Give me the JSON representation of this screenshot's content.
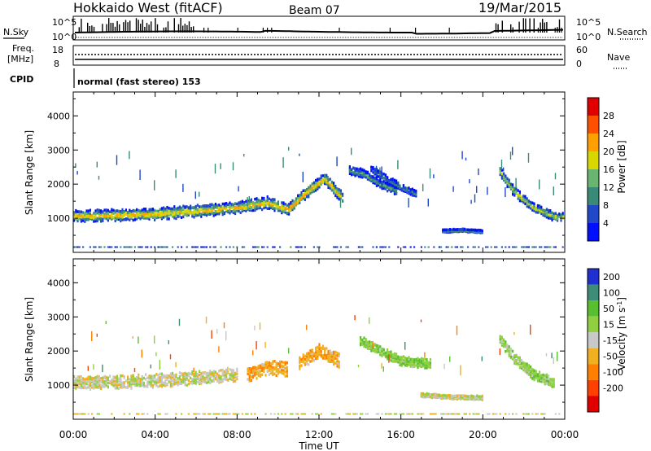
{
  "header": {
    "station": "Hokkaido West (fitACF)",
    "beam": "Beam 07",
    "date": "19/Mar/2015"
  },
  "summary": {
    "nsky_label": "N.Sky",
    "nsearch_label": "N.Search",
    "noise_ticks": [
      "10^5",
      "10^0"
    ],
    "freq_label_1": "Freq.",
    "freq_label_2": "[MHz]",
    "freq_ticks": [
      "18",
      "8"
    ],
    "nave_label": "Nave",
    "nave_ticks": [
      "60",
      "0"
    ],
    "cpid_label": "CPID",
    "cpid_text": "normal (fast stereo) 153"
  },
  "axes": {
    "ylabel": "Slant Range [km]",
    "yticks": [
      "1000",
      "2000",
      "3000",
      "4000"
    ],
    "xlabel": "Time UT",
    "xticks": [
      "00:00",
      "04:00",
      "08:00",
      "12:00",
      "16:00",
      "20:00",
      "00:00"
    ]
  },
  "power_scale": {
    "label": "Power [dB]",
    "ticks": [
      "4",
      "8",
      "12",
      "16",
      "20",
      "24",
      "28"
    ],
    "colors": [
      "#0010ff",
      "#2048c8",
      "#3a8a78",
      "#68b470",
      "#d8d800",
      "#ffa000",
      "#ff5000",
      "#e00000"
    ]
  },
  "velocity_scale": {
    "label_main": "Velocity [m s",
    "label_sup": "-1",
    "label_end": "]",
    "ticks": [
      "200",
      "100",
      "50",
      "15",
      "-15",
      "-50",
      "-100",
      "-200"
    ],
    "colors": [
      "#2030d0",
      "#3c8c78",
      "#58c030",
      "#90d040",
      "#c8c8c8",
      "#f0b020",
      "#ff8000",
      "#ff4000",
      "#e00000"
    ]
  },
  "chart_data": [
    {
      "type": "heatmap",
      "panel": "power",
      "x_unit": "hours UT",
      "xlim": [
        0,
        24
      ],
      "ylim": [
        0,
        4700
      ],
      "clim": [
        0,
        30
      ],
      "backscatter_bands": [
        {
          "t": [
            0,
            2,
            4,
            6,
            8,
            9.5,
            10.5,
            11.5,
            12.3,
            13.2
          ],
          "range_km": [
            1050,
            1080,
            1120,
            1200,
            1300,
            1450,
            1250,
            1800,
            2150,
            1550
          ],
          "width_km": 250,
          "peak_power_db": 22
        },
        {
          "t": [
            13.5,
            14.2,
            15,
            15.8
          ],
          "range_km": [
            2400,
            2300,
            2000,
            1800
          ],
          "width_km": 180,
          "peak_power_db": 12
        },
        {
          "t": [
            14.5,
            15.2,
            16,
            16.8
          ],
          "range_km": [
            2450,
            2200,
            1900,
            1700
          ],
          "width_km": 150,
          "peak_power_db": 10
        },
        {
          "t": [
            20.8,
            21.5,
            22.5,
            23.5,
            24
          ],
          "range_km": [
            2400,
            1800,
            1300,
            1050,
            1000
          ],
          "width_km": 200,
          "peak_power_db": 18
        },
        {
          "t": [
            18,
            19,
            20
          ],
          "range_km": [
            620,
            640,
            600
          ],
          "width_km": 60,
          "peak_power_db": 12
        }
      ]
    },
    {
      "type": "heatmap",
      "panel": "velocity",
      "x_unit": "hours UT",
      "xlim": [
        0,
        24
      ],
      "ylim": [
        0,
        4700
      ],
      "clim": [
        -250,
        250
      ],
      "backscatter_bands": [
        {
          "t": [
            0,
            2,
            4,
            6,
            8
          ],
          "range_km": [
            1050,
            1080,
            1120,
            1200,
            1300
          ],
          "width_km": 280,
          "velocity_ms": 0
        },
        {
          "t": [
            8.5,
            9.5,
            10.5
          ],
          "range_km": [
            1300,
            1500,
            1450
          ],
          "width_km": 300,
          "velocity_ms": -40
        },
        {
          "t": [
            11,
            12,
            13
          ],
          "range_km": [
            1600,
            2000,
            1700
          ],
          "width_km": 300,
          "velocity_ms": -40
        },
        {
          "t": [
            14,
            15,
            16,
            17.5
          ],
          "range_km": [
            2300,
            2000,
            1700,
            1600
          ],
          "width_km": 200,
          "velocity_ms": 40
        },
        {
          "t": [
            20.8,
            21.5,
            22.5,
            23.5
          ],
          "range_km": [
            2400,
            1800,
            1300,
            1050
          ],
          "width_km": 220,
          "velocity_ms": 30
        },
        {
          "t": [
            17,
            18.5,
            20
          ],
          "range_km": [
            700,
            640,
            620
          ],
          "width_km": 80,
          "velocity_ms": 0
        }
      ]
    }
  ]
}
